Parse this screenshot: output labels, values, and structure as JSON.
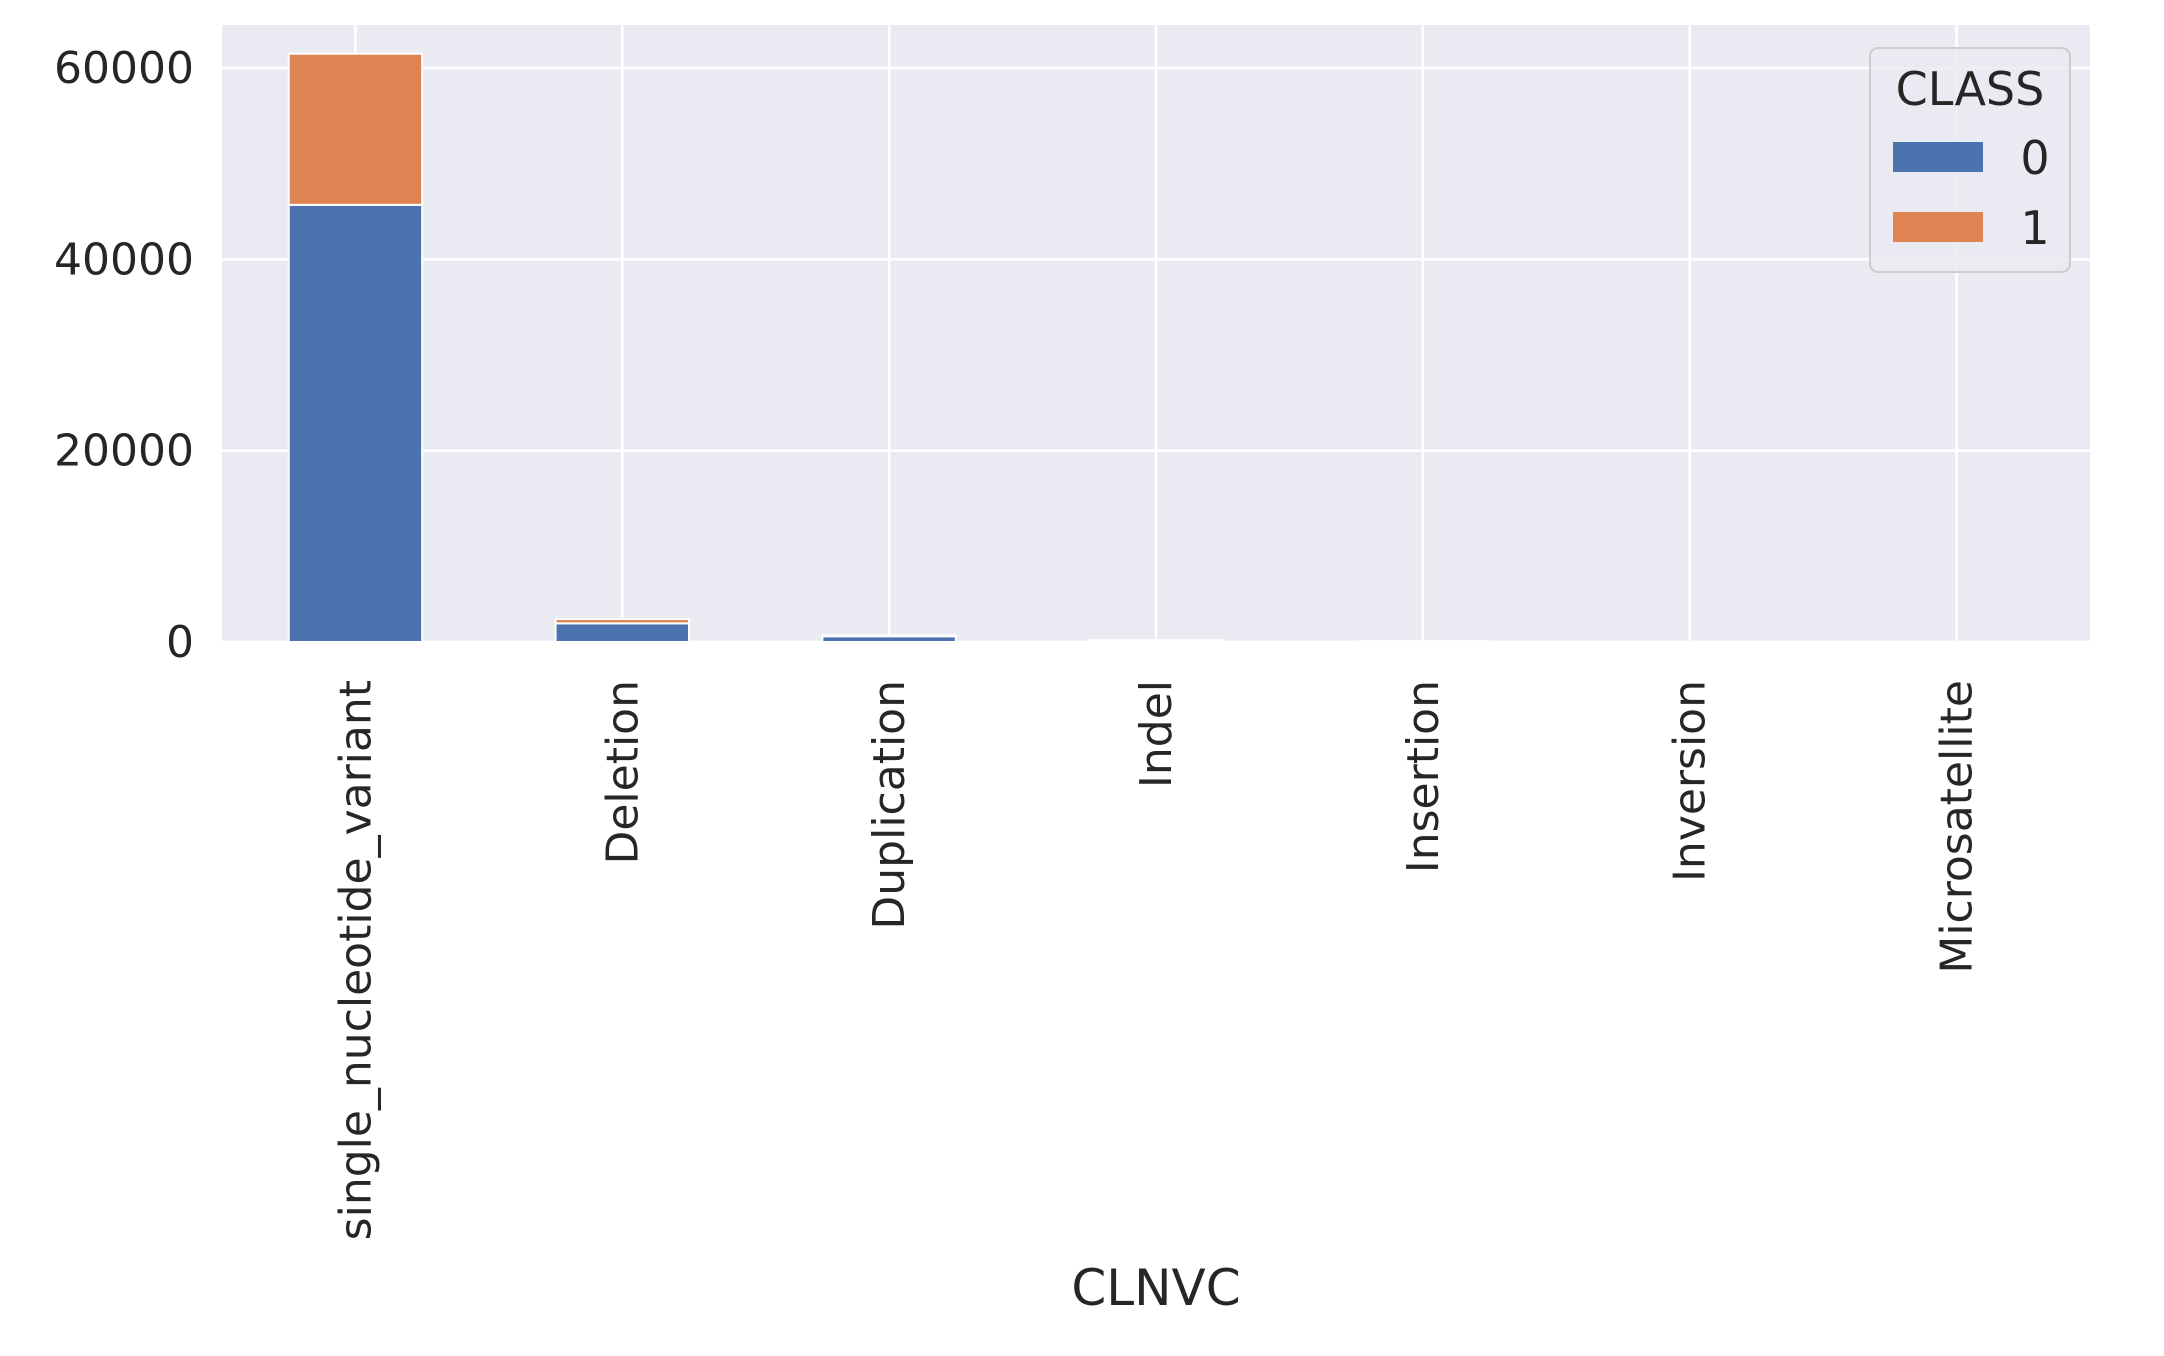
{
  "chart_data": {
    "type": "bar",
    "stacked": true,
    "categories": [
      "single_nucleotide_variant",
      "Deletion",
      "Duplication",
      "Indel",
      "Insertion",
      "Inversion",
      "Microsatellite"
    ],
    "series": [
      {
        "name": "0",
        "values": [
          45700,
          1950,
          600,
          130,
          60,
          30,
          15
        ],
        "color": "#4c72b0"
      },
      {
        "name": "1",
        "values": [
          15800,
          450,
          100,
          60,
          20,
          10,
          5
        ],
        "color": "#dd8452"
      }
    ],
    "xlabel": "CLNVC",
    "ylabel": "",
    "ylim": [
      0,
      64500
    ],
    "yticks": [
      0,
      20000,
      40000,
      60000
    ],
    "ytick_labels": [
      "0",
      "20000",
      "40000",
      "60000"
    ],
    "legend": {
      "title": "CLASS",
      "placement": "top-right"
    },
    "grid": true,
    "plot_background": "#eaeaf2",
    "grid_color": "#ffffff"
  }
}
